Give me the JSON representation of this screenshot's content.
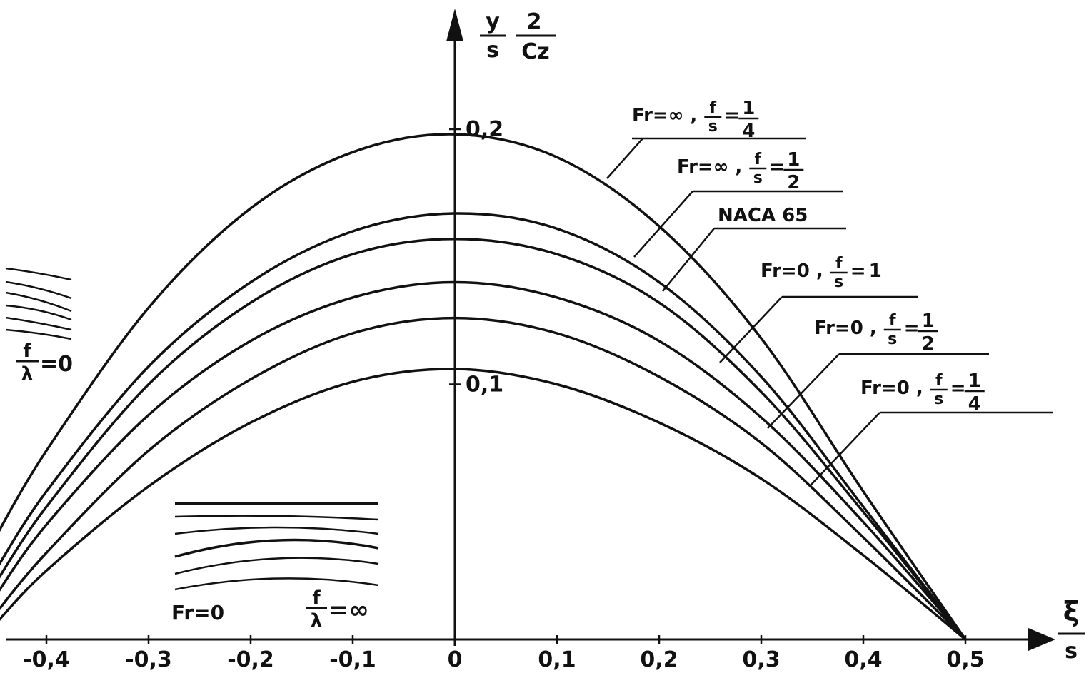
{
  "chart_data": {
    "type": "line",
    "xlabel": {
      "num": "ξ",
      "den": "s"
    },
    "ylabel": {
      "num1": "y",
      "den1": "s",
      "num2": "2",
      "den2": "Cz"
    },
    "x_ticks": [
      "-0,4",
      "-0,3",
      "-0,2",
      "-0,1",
      "0",
      "0,1",
      "0,2",
      "0,3",
      "0,4",
      "0,5"
    ],
    "x_tick_values": [
      -0.4,
      -0.3,
      -0.2,
      -0.1,
      0,
      0.1,
      0.2,
      0.3,
      0.4,
      0.5
    ],
    "y_ticks": [
      "0,1",
      "0,2"
    ],
    "y_tick_values": [
      0.1,
      0.2
    ],
    "xlim": [
      -0.45,
      0.55
    ],
    "ylim": [
      0,
      0.23
    ],
    "series": [
      {
        "name": "Fr=∞ , f/s=1/4",
        "lbl_a": "Fr=∞ ,",
        "frac_num": "f",
        "frac_den": "s",
        "eq": "=",
        "val_num": "1",
        "val_den": "4",
        "x": [
          -0.45,
          -0.4,
          -0.3,
          -0.2,
          -0.1,
          0,
          0.1,
          0.2,
          0.3,
          0.4,
          0.5
        ],
        "y": [
          0.04,
          0.074,
          0.13,
          0.169,
          0.191,
          0.198,
          0.189,
          0.162,
          0.118,
          0.058,
          0
        ]
      },
      {
        "name": "Fr=∞ , f/s=1/2",
        "lbl_a": "Fr=∞ ,",
        "frac_num": "f",
        "frac_den": "s",
        "eq": "=",
        "val_num": "1",
        "val_den": "2",
        "x": [
          -0.45,
          -0.4,
          -0.3,
          -0.2,
          -0.1,
          0,
          0.1,
          0.2,
          0.3,
          0.4,
          0.5
        ],
        "y": [
          0.027,
          0.058,
          0.107,
          0.14,
          0.16,
          0.167,
          0.161,
          0.14,
          0.103,
          0.052,
          0
        ]
      },
      {
        "name": "NACA 65",
        "lbl_a": "NACA 65",
        "frac_num": "",
        "frac_den": "",
        "eq": "",
        "val_num": "",
        "val_den": "",
        "x": [
          -0.45,
          -0.4,
          -0.3,
          -0.2,
          -0.1,
          0,
          0.1,
          0.2,
          0.3,
          0.4,
          0.5
        ],
        "y": [
          0.022,
          0.052,
          0.1,
          0.132,
          0.151,
          0.157,
          0.151,
          0.132,
          0.097,
          0.05,
          0
        ]
      },
      {
        "name": "Fr=0 , f/s=1",
        "lbl_a": "Fr=0 ,",
        "frac_num": "f",
        "frac_den": "s",
        "eq": "=",
        "val_num": "1",
        "val_den": "",
        "x": [
          -0.45,
          -0.4,
          -0.3,
          -0.2,
          -0.1,
          0,
          0.1,
          0.2,
          0.3,
          0.4,
          0.5
        ],
        "y": [
          0.017,
          0.045,
          0.088,
          0.117,
          0.134,
          0.14,
          0.134,
          0.117,
          0.087,
          0.046,
          0
        ]
      },
      {
        "name": "Fr=0 , f/s=1/2",
        "lbl_a": "Fr=0 ,",
        "frac_num": "f",
        "frac_den": "s",
        "eq": "=",
        "val_num": "1",
        "val_den": "2",
        "x": [
          -0.45,
          -0.4,
          -0.3,
          -0.2,
          -0.1,
          0,
          0.1,
          0.2,
          0.3,
          0.4,
          0.5
        ],
        "y": [
          0.01,
          0.034,
          0.074,
          0.102,
          0.12,
          0.126,
          0.12,
          0.103,
          0.077,
          0.04,
          0
        ]
      },
      {
        "name": "Fr=0 , f/s=1/4",
        "lbl_a": "Fr=0 ,",
        "frac_num": "f",
        "frac_den": "s",
        "eq": "=",
        "val_num": "1",
        "val_den": "4",
        "x": [
          -0.45,
          -0.4,
          -0.3,
          -0.2,
          -0.1,
          0,
          0.1,
          0.2,
          0.3,
          0.4,
          0.5
        ],
        "y": [
          0.006,
          0.027,
          0.06,
          0.085,
          0.101,
          0.106,
          0.1,
          0.085,
          0.063,
          0.033,
          0
        ]
      }
    ],
    "inset_left": {
      "num": "f",
      "den": "λ",
      "eq": "=0"
    },
    "inset_bottom": {
      "label1": "Fr=0",
      "num": "f",
      "den": "λ",
      "eq": "=∞"
    },
    "grid": false
  }
}
